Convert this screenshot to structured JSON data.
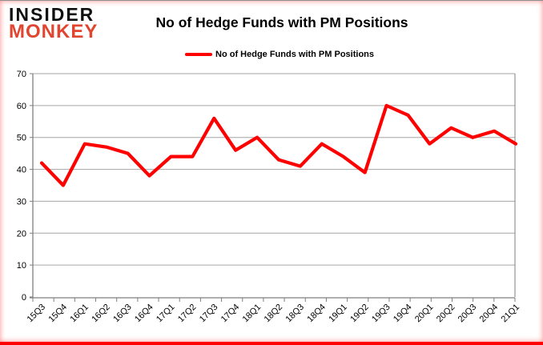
{
  "logo": {
    "line1": "INSIDER",
    "line2": "MONKEY"
  },
  "header": {
    "title": "No of Hedge Funds with PM Positions"
  },
  "legend": {
    "label": "No of Hedge Funds with PM Positions"
  },
  "colors": {
    "line": "#ff0000",
    "gridline": "#a6a6a6",
    "axis": "#7f7f7f",
    "text": "#000000",
    "logo_black": "#101010",
    "logo_red": "#e2452f",
    "frame_red": "#ff0000"
  },
  "chart_data": {
    "type": "line",
    "title": "No of Hedge Funds with PM Positions",
    "categories": [
      "15Q3",
      "15Q4",
      "16Q1",
      "16Q2",
      "16Q3",
      "16Q4",
      "17Q1",
      "17Q2",
      "17Q3",
      "17Q4",
      "18Q1",
      "18Q2",
      "18Q3",
      "18Q4",
      "19Q1",
      "19Q2",
      "19Q3",
      "19Q4",
      "20Q1",
      "20Q2",
      "20Q3",
      "20Q4",
      "21Q1"
    ],
    "series": [
      {
        "name": "No of Hedge Funds with PM Positions",
        "color": "#ff0000",
        "values": [
          42,
          35,
          48,
          47,
          45,
          38,
          44,
          44,
          56,
          46,
          50,
          43,
          41,
          48,
          44,
          39,
          60,
          57,
          48,
          53,
          50,
          52,
          48
        ]
      }
    ],
    "xlabel": "",
    "ylabel": "",
    "ylim": [
      0,
      70
    ],
    "yticks": [
      0,
      10,
      20,
      30,
      40,
      50,
      60,
      70
    ],
    "grid": true,
    "legend_position": "top-center",
    "markers": false
  }
}
